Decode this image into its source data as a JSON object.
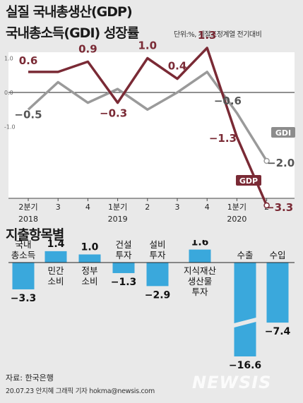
{
  "header": {
    "title_line1": "실질 국내총생산(GDP)",
    "title_line2": "국내총소득(GDI) 성장률",
    "unit_note": "단위:%, 계절조정계열 전기대비"
  },
  "chart_data": [
    {
      "type": "line",
      "x_labels": [
        "2분기",
        "3",
        "4",
        "1분기",
        "2",
        "3",
        "4",
        "1분기",
        "2"
      ],
      "year_labels": [
        {
          "index": 0,
          "label": "2018"
        },
        {
          "index": 3,
          "label": "2019"
        },
        {
          "index": 7,
          "label": "2020"
        }
      ],
      "y_ticks": [
        "1.0",
        "0.0",
        "-1.0"
      ],
      "ylim": [
        -3.8,
        1.7
      ],
      "series": [
        {
          "name": "GDP",
          "color": "#7a2a35",
          "values": [
            0.6,
            0.6,
            0.9,
            -0.3,
            1.0,
            0.4,
            1.3,
            -1.3,
            -3.3
          ],
          "labels": [
            "0.6",
            "",
            "0.9",
            "−0.3",
            "1.0",
            "0.4",
            "1.3",
            "−1.3",
            "−3.3"
          ]
        },
        {
          "name": "GDI",
          "color": "#9a9a9a",
          "values": [
            -0.5,
            0.3,
            -0.3,
            0.1,
            -0.5,
            0.0,
            0.6,
            -0.6,
            -2.0
          ],
          "labels": [
            "−0.5",
            "",
            "",
            "",
            "",
            "",
            "",
            "−0.6",
            "−2.0"
          ]
        }
      ]
    },
    {
      "type": "bar",
      "title": "지출항목별",
      "categories": [
        "국내\n총소득",
        "민간\n소비",
        "정부\n소비",
        "건설\n투자",
        "설비\n투자",
        "지식재산\n생산물\n투자",
        "수출",
        "수입"
      ],
      "values": [
        -3.3,
        1.4,
        1.0,
        -1.3,
        -2.9,
        1.6,
        -16.6,
        -7.4
      ],
      "value_labels": [
        "−3.3",
        "1.4",
        "1.0",
        "−1.3",
        "−2.9",
        "1.6",
        "−16.6",
        "−7.4"
      ],
      "bar_color": "#3aa8dc",
      "axis_break": "수출"
    }
  ],
  "footer": {
    "source": "자료: 한국은행",
    "credit": "20.07.23 안지혜 그래픽 기자 hokma@newsis.com",
    "watermark": "NEWSIS"
  }
}
